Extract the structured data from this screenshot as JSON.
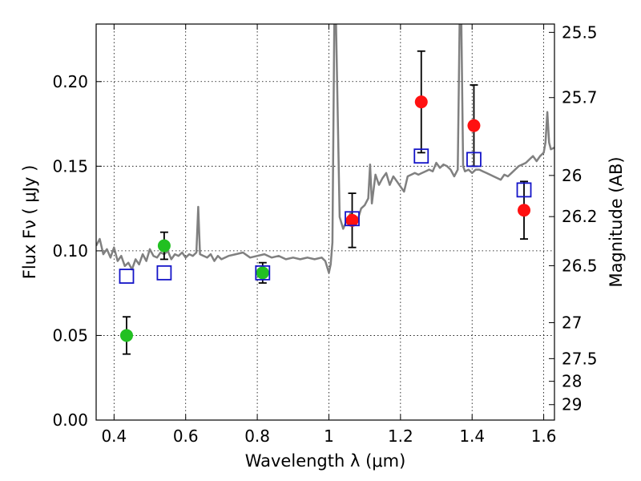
{
  "chart_data": {
    "type": "scatter",
    "title": "",
    "xlabel": "Wavelength  λ (μm)",
    "ylabel": "Flux  Fν  ( μJy )",
    "y2label": "Magnitude (AB)",
    "xlim": [
      0.35,
      1.63
    ],
    "ylim": [
      0.0,
      0.234
    ],
    "grid": true,
    "xticks": [
      0.4,
      0.6,
      0.8,
      1.0,
      1.2,
      1.4,
      1.6
    ],
    "xtick_labels": [
      "0.4",
      "0.6",
      "0.8",
      "1",
      "1.2",
      "1.4",
      "1.6"
    ],
    "yticks": [
      0.0,
      0.05,
      0.1,
      0.15,
      0.2
    ],
    "ytick_labels": [
      "0.00",
      "0.05",
      "0.10",
      "0.15",
      "0.20"
    ],
    "mag_ticks": [
      {
        "label": "25.5",
        "mag": 25.5
      },
      {
        "label": "25.7",
        "mag": 25.7
      },
      {
        "label": "26",
        "mag": 26.0
      },
      {
        "label": "26.2",
        "mag": 26.2
      },
      {
        "label": "26.5",
        "mag": 26.5
      },
      {
        "label": "27",
        "mag": 27.0
      },
      {
        "label": "27.5",
        "mag": 27.5
      },
      {
        "label": "28",
        "mag": 28.0
      },
      {
        "label": "29",
        "mag": 29.0
      }
    ],
    "series": [
      {
        "kind": "line",
        "color": "#808080",
        "x": [
          0.35,
          0.36,
          0.37,
          0.38,
          0.39,
          0.4,
          0.41,
          0.42,
          0.43,
          0.44,
          0.45,
          0.46,
          0.47,
          0.48,
          0.49,
          0.5,
          0.51,
          0.52,
          0.53,
          0.54,
          0.55,
          0.56,
          0.57,
          0.58,
          0.59,
          0.6,
          0.61,
          0.62,
          0.63,
          0.635,
          0.64,
          0.65,
          0.66,
          0.67,
          0.68,
          0.69,
          0.7,
          0.72,
          0.74,
          0.76,
          0.78,
          0.8,
          0.82,
          0.84,
          0.86,
          0.88,
          0.9,
          0.92,
          0.94,
          0.96,
          0.98,
          0.99,
          1.0,
          1.005,
          1.01,
          1.015,
          1.02,
          1.03,
          1.04,
          1.05,
          1.06,
          1.07,
          1.08,
          1.09,
          1.1,
          1.11,
          1.115,
          1.12,
          1.13,
          1.14,
          1.15,
          1.16,
          1.17,
          1.18,
          1.19,
          1.2,
          1.21,
          1.22,
          1.23,
          1.24,
          1.25,
          1.26,
          1.27,
          1.28,
          1.29,
          1.3,
          1.31,
          1.32,
          1.33,
          1.34,
          1.35,
          1.36,
          1.365,
          1.37,
          1.375,
          1.38,
          1.39,
          1.4,
          1.41,
          1.42,
          1.43,
          1.44,
          1.45,
          1.46,
          1.47,
          1.48,
          1.49,
          1.5,
          1.51,
          1.52,
          1.53,
          1.54,
          1.55,
          1.56,
          1.57,
          1.58,
          1.59,
          1.6,
          1.605,
          1.61,
          1.615,
          1.62,
          1.63
        ],
        "y": [
          0.103,
          0.107,
          0.098,
          0.101,
          0.096,
          0.102,
          0.094,
          0.097,
          0.091,
          0.093,
          0.089,
          0.095,
          0.092,
          0.098,
          0.094,
          0.101,
          0.097,
          0.096,
          0.099,
          0.098,
          0.1,
          0.095,
          0.098,
          0.097,
          0.099,
          0.096,
          0.098,
          0.097,
          0.099,
          0.126,
          0.098,
          0.097,
          0.096,
          0.098,
          0.094,
          0.097,
          0.095,
          0.097,
          0.098,
          0.099,
          0.096,
          0.097,
          0.098,
          0.096,
          0.097,
          0.095,
          0.096,
          0.095,
          0.096,
          0.095,
          0.096,
          0.094,
          0.087,
          0.092,
          0.105,
          0.234,
          0.234,
          0.12,
          0.113,
          0.118,
          0.122,
          0.12,
          0.118,
          0.125,
          0.127,
          0.131,
          0.151,
          0.128,
          0.145,
          0.139,
          0.143,
          0.146,
          0.139,
          0.144,
          0.141,
          0.138,
          0.135,
          0.144,
          0.145,
          0.146,
          0.145,
          0.146,
          0.147,
          0.148,
          0.147,
          0.152,
          0.149,
          0.151,
          0.15,
          0.148,
          0.144,
          0.148,
          0.234,
          0.234,
          0.15,
          0.147,
          0.148,
          0.146,
          0.148,
          0.148,
          0.147,
          0.146,
          0.145,
          0.144,
          0.143,
          0.142,
          0.145,
          0.144,
          0.146,
          0.148,
          0.15,
          0.151,
          0.152,
          0.154,
          0.156,
          0.153,
          0.156,
          0.158,
          0.164,
          0.182,
          0.164,
          0.16,
          0.161
        ]
      },
      {
        "kind": "markers",
        "marker": "circle",
        "color": "#22c022",
        "x": [
          0.435,
          0.54,
          0.815
        ],
        "y": [
          0.05,
          0.103,
          0.087
        ],
        "yerr": [
          0.011,
          0.008,
          0.006
        ]
      },
      {
        "kind": "markers",
        "marker": "circle",
        "color": "#ff1111",
        "x": [
          1.065,
          1.258,
          1.405,
          1.545
        ],
        "y": [
          0.118,
          0.188,
          0.174,
          0.124
        ],
        "yerr": [
          0.016,
          0.03,
          0.024,
          0.017
        ]
      },
      {
        "kind": "markers",
        "marker": "square-open",
        "color": "#1414c8",
        "x": [
          0.435,
          0.54,
          0.815,
          1.065,
          1.258,
          1.405,
          1.545
        ],
        "y": [
          0.085,
          0.087,
          0.087,
          0.119,
          0.156,
          0.154,
          0.136
        ]
      }
    ]
  }
}
